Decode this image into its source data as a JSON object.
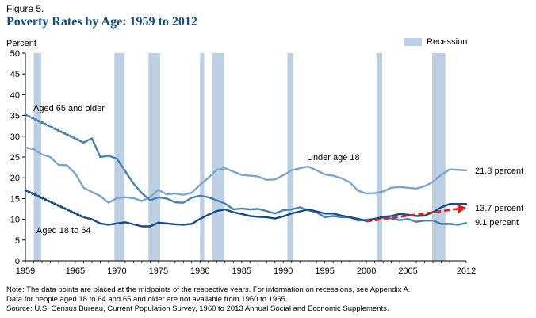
{
  "figure_label": "Figure 5.",
  "chart_data": {
    "type": "line",
    "title": "Poverty Rates by Age: 1959 to 2012",
    "ylabel": "Percent",
    "xlabel": "",
    "ylim": [
      0,
      50
    ],
    "xlim": [
      1959,
      2012
    ],
    "y_ticks": [
      0,
      5,
      10,
      15,
      20,
      25,
      30,
      35,
      40,
      45,
      50
    ],
    "x_tick_labels": [
      "1959",
      "1965",
      "1970",
      "1975",
      "1980",
      "1985",
      "1990",
      "1995",
      "2000",
      "2005",
      "2012"
    ],
    "legend": {
      "label": "Recession",
      "color": "#bdd0e3",
      "position": "top-right"
    },
    "recessions": [
      [
        1960.0,
        1960.9
      ],
      [
        1969.7,
        1970.9
      ],
      [
        1973.8,
        1975.2
      ],
      [
        1980.0,
        1980.5
      ],
      [
        1981.5,
        1982.9
      ],
      [
        1990.5,
        1991.2
      ],
      [
        2001.2,
        2001.9
      ],
      [
        2007.9,
        2009.5
      ]
    ],
    "series": [
      {
        "name": "Under age 18",
        "label": "Under age 18",
        "end_label": "21.8 percent",
        "color": "#7ba4cf",
        "x": [
          1959,
          1960,
          1961,
          1962,
          1963,
          1964,
          1965,
          1966,
          1967,
          1968,
          1969,
          1970,
          1971,
          1972,
          1973,
          1974,
          1975,
          1976,
          1977,
          1978,
          1979,
          1980,
          1981,
          1982,
          1983,
          1984,
          1985,
          1986,
          1987,
          1988,
          1989,
          1990,
          1991,
          1992,
          1993,
          1994,
          1995,
          1996,
          1997,
          1998,
          1999,
          2000,
          2001,
          2002,
          2003,
          2004,
          2005,
          2006,
          2007,
          2008,
          2009,
          2010,
          2011,
          2012
        ],
        "values": [
          27.3,
          26.9,
          25.6,
          25.0,
          23.1,
          23.0,
          21.0,
          17.6,
          16.6,
          15.6,
          14.0,
          15.1,
          15.3,
          15.1,
          14.4,
          15.4,
          17.1,
          16.0,
          16.2,
          15.9,
          16.4,
          18.3,
          20.0,
          21.9,
          22.3,
          21.5,
          20.7,
          20.5,
          20.3,
          19.5,
          19.6,
          20.6,
          21.8,
          22.3,
          22.7,
          21.8,
          20.8,
          20.5,
          19.9,
          18.9,
          16.9,
          16.2,
          16.3,
          16.7,
          17.6,
          17.8,
          17.6,
          17.4,
          18.0,
          19.0,
          20.7,
          22.0,
          21.9,
          21.8
        ]
      },
      {
        "name": "Aged 65 and older",
        "label": "Aged 65 and older",
        "end_label": "9.1 percent",
        "color": "#4b7fb0",
        "x": [
          1966,
          1967,
          1968,
          1969,
          1970,
          1971,
          1972,
          1973,
          1974,
          1975,
          1976,
          1977,
          1978,
          1979,
          1980,
          1981,
          1982,
          1983,
          1984,
          1985,
          1986,
          1987,
          1988,
          1989,
          1990,
          1991,
          1992,
          1993,
          1994,
          1995,
          1996,
          1997,
          1998,
          1999,
          2000,
          2001,
          2002,
          2003,
          2004,
          2005,
          2006,
          2007,
          2008,
          2009,
          2010,
          2011,
          2012
        ],
        "values": [
          28.5,
          29.5,
          25.0,
          25.3,
          24.6,
          21.6,
          18.6,
          16.3,
          14.6,
          15.3,
          15.0,
          14.1,
          14.0,
          15.2,
          15.7,
          15.3,
          14.6,
          13.8,
          12.4,
          12.6,
          12.4,
          12.5,
          12.0,
          11.4,
          12.2,
          12.4,
          12.9,
          12.2,
          11.7,
          10.5,
          10.8,
          10.5,
          10.5,
          9.7,
          9.9,
          10.1,
          10.4,
          10.2,
          9.8,
          10.1,
          9.4,
          9.7,
          9.7,
          8.9,
          8.9,
          8.7,
          9.1
        ]
      },
      {
        "name": "Aged 18 to 64",
        "label": "Aged 18 to 64",
        "end_label": "13.7 percent",
        "color": "#164a80",
        "x": [
          1966,
          1967,
          1968,
          1969,
          1970,
          1971,
          1972,
          1973,
          1974,
          1975,
          1976,
          1977,
          1978,
          1979,
          1980,
          1981,
          1982,
          1983,
          1984,
          1985,
          1986,
          1987,
          1988,
          1989,
          1990,
          1991,
          1992,
          1993,
          1994,
          1995,
          1996,
          1997,
          1998,
          1999,
          2000,
          2001,
          2002,
          2003,
          2004,
          2005,
          2006,
          2007,
          2008,
          2009,
          2010,
          2011,
          2012
        ],
        "values": [
          10.5,
          10.0,
          9.0,
          8.7,
          9.0,
          9.3,
          8.8,
          8.3,
          8.3,
          9.2,
          9.0,
          8.8,
          8.7,
          8.9,
          10.1,
          11.1,
          12.0,
          12.4,
          11.7,
          11.3,
          10.8,
          10.6,
          10.5,
          10.2,
          10.7,
          11.4,
          11.9,
          12.4,
          11.9,
          11.4,
          11.4,
          10.9,
          10.5,
          10.1,
          9.6,
          10.1,
          10.6,
          10.8,
          11.3,
          11.1,
          10.8,
          10.9,
          11.7,
          12.9,
          13.7,
          13.7,
          13.7
        ]
      }
    ],
    "annotations": {
      "note": "Note: The data points are placed at the midpoints of the respective years. For information on recessions, see Appendix A.",
      "note2": "Data for people aged 18 to 64 and 65 and older are not available from 1960 to 1965.",
      "source": "Source: U.S. Census Bureau, Current Population Survey, 1960 to 2013 Annual Social and Economic Supplements."
    },
    "extrapolations": [
      {
        "series": "Aged 65 and older",
        "from": [
          1959,
          35.2
        ],
        "to": [
          1966,
          28.5
        ]
      },
      {
        "series": "Aged 18 to 64",
        "from": [
          1959,
          17.0
        ],
        "to": [
          1966,
          10.5
        ]
      }
    ],
    "trend_arrow": {
      "color": "#e41a1c",
      "from": [
        2000,
        9.5
      ],
      "to": [
        2012,
        12.8
      ]
    }
  }
}
